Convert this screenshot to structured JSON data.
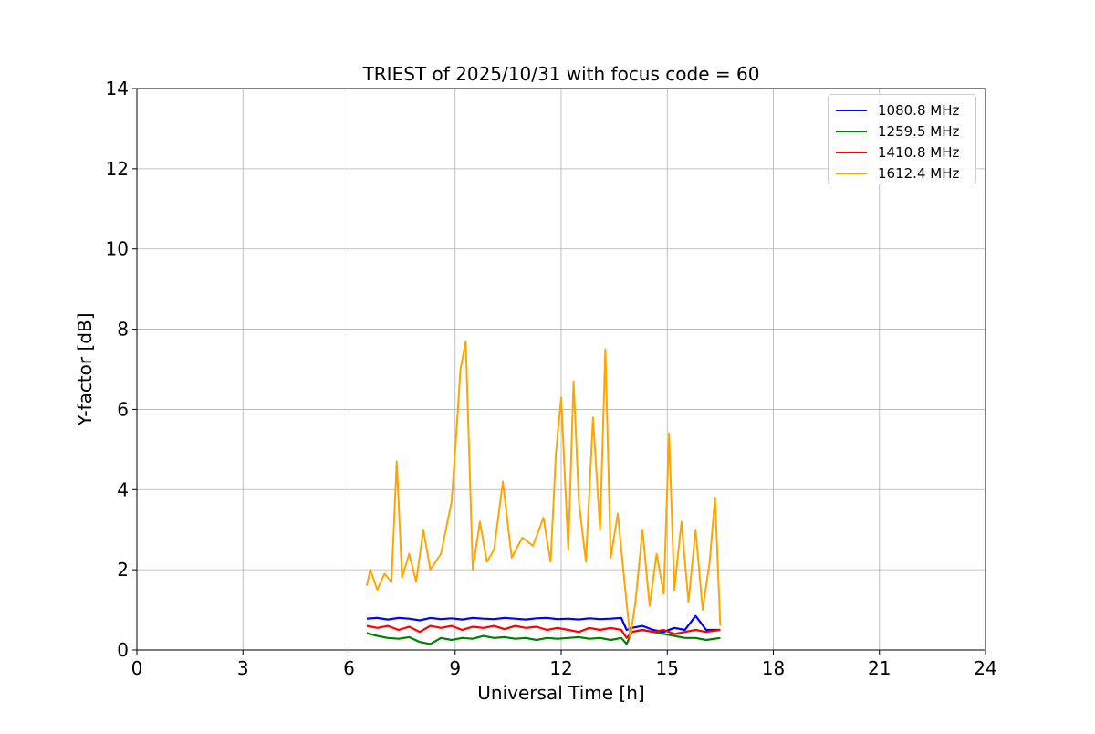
{
  "chart_data": {
    "type": "line",
    "title": "TRIEST of 2025/10/31 with focus code = 60",
    "xlabel": "Universal Time [h]",
    "ylabel": "Y-factor [dB]",
    "xlim": [
      0,
      24
    ],
    "ylim": [
      0,
      14
    ],
    "xticks": [
      0,
      3,
      6,
      9,
      12,
      15,
      18,
      21,
      24
    ],
    "yticks": [
      0,
      2,
      4,
      6,
      8,
      10,
      12,
      14
    ],
    "xtick_labels": [
      "0",
      "3",
      "6",
      "9",
      "12",
      "15",
      "18",
      "21",
      "24"
    ],
    "ytick_labels": [
      "0",
      "2",
      "4",
      "6",
      "8",
      "10",
      "12",
      "14"
    ],
    "grid": true,
    "legend_position": "top-right",
    "series": [
      {
        "name": "1080.8 MHz",
        "color": "#0000ff",
        "x": [
          6.5,
          6.8,
          7.1,
          7.4,
          7.7,
          8.0,
          8.3,
          8.6,
          8.9,
          9.2,
          9.5,
          9.8,
          10.1,
          10.4,
          10.7,
          11.0,
          11.3,
          11.6,
          11.9,
          12.2,
          12.5,
          12.8,
          13.1,
          13.4,
          13.7,
          13.85,
          14.0,
          14.3,
          14.6,
          14.9,
          15.2,
          15.5,
          15.8,
          16.1,
          16.5
        ],
        "y": [
          0.78,
          0.8,
          0.76,
          0.8,
          0.78,
          0.74,
          0.8,
          0.77,
          0.79,
          0.76,
          0.8,
          0.78,
          0.77,
          0.8,
          0.78,
          0.76,
          0.79,
          0.8,
          0.77,
          0.78,
          0.76,
          0.79,
          0.77,
          0.78,
          0.8,
          0.5,
          0.55,
          0.6,
          0.5,
          0.45,
          0.55,
          0.5,
          0.85,
          0.5,
          0.5
        ]
      },
      {
        "name": "1259.5 MHz",
        "color": "#008000",
        "x": [
          6.5,
          6.8,
          7.1,
          7.4,
          7.7,
          8.0,
          8.3,
          8.6,
          8.9,
          9.2,
          9.5,
          9.8,
          10.1,
          10.4,
          10.7,
          11.0,
          11.3,
          11.6,
          11.9,
          12.2,
          12.5,
          12.8,
          13.1,
          13.4,
          13.7,
          13.85,
          14.0,
          14.3,
          14.6,
          14.9,
          15.2,
          15.5,
          15.8,
          16.1,
          16.5
        ],
        "y": [
          0.42,
          0.35,
          0.3,
          0.28,
          0.32,
          0.2,
          0.15,
          0.3,
          0.25,
          0.3,
          0.28,
          0.35,
          0.3,
          0.32,
          0.28,
          0.3,
          0.25,
          0.3,
          0.28,
          0.3,
          0.32,
          0.28,
          0.3,
          0.25,
          0.3,
          0.15,
          0.45,
          0.5,
          0.45,
          0.4,
          0.35,
          0.3,
          0.3,
          0.25,
          0.3
        ]
      },
      {
        "name": "1410.8 MHz",
        "color": "#ff0000",
        "x": [
          6.5,
          6.8,
          7.1,
          7.4,
          7.7,
          8.0,
          8.3,
          8.6,
          8.9,
          9.2,
          9.5,
          9.8,
          10.1,
          10.4,
          10.7,
          11.0,
          11.3,
          11.6,
          11.9,
          12.2,
          12.5,
          12.8,
          13.1,
          13.4,
          13.7,
          13.85,
          14.0,
          14.3,
          14.6,
          14.9,
          15.2,
          15.5,
          15.8,
          16.1,
          16.5
        ],
        "y": [
          0.6,
          0.55,
          0.6,
          0.5,
          0.58,
          0.45,
          0.6,
          0.55,
          0.6,
          0.5,
          0.58,
          0.55,
          0.6,
          0.52,
          0.6,
          0.55,
          0.58,
          0.5,
          0.55,
          0.5,
          0.45,
          0.55,
          0.5,
          0.55,
          0.5,
          0.3,
          0.45,
          0.5,
          0.45,
          0.5,
          0.4,
          0.45,
          0.5,
          0.45,
          0.5
        ]
      },
      {
        "name": "1612.4 MHz",
        "color": "#ffa500",
        "x": [
          6.5,
          6.6,
          6.8,
          7.0,
          7.2,
          7.35,
          7.5,
          7.7,
          7.9,
          8.1,
          8.3,
          8.6,
          8.9,
          9.05,
          9.15,
          9.3,
          9.5,
          9.7,
          9.9,
          10.1,
          10.35,
          10.6,
          10.9,
          11.2,
          11.5,
          11.7,
          11.85,
          12.0,
          12.2,
          12.35,
          12.5,
          12.7,
          12.9,
          13.1,
          13.25,
          13.4,
          13.6,
          13.8,
          13.95,
          14.1,
          14.3,
          14.5,
          14.7,
          14.9,
          15.05,
          15.2,
          15.4,
          15.6,
          15.8,
          16.0,
          16.2,
          16.35,
          16.5
        ],
        "y": [
          1.6,
          2.0,
          1.5,
          1.9,
          1.7,
          4.7,
          1.8,
          2.4,
          1.7,
          3.0,
          2.0,
          2.4,
          3.7,
          5.6,
          7.0,
          7.7,
          2.0,
          3.2,
          2.2,
          2.5,
          4.2,
          2.3,
          2.8,
          2.6,
          3.3,
          2.2,
          4.9,
          6.3,
          2.5,
          6.7,
          3.7,
          2.2,
          5.8,
          3.0,
          7.5,
          2.3,
          3.4,
          1.6,
          0.3,
          1.2,
          3.0,
          1.1,
          2.4,
          1.4,
          5.4,
          1.5,
          3.2,
          1.2,
          3.0,
          1.0,
          2.2,
          3.8,
          0.6
        ]
      }
    ]
  }
}
